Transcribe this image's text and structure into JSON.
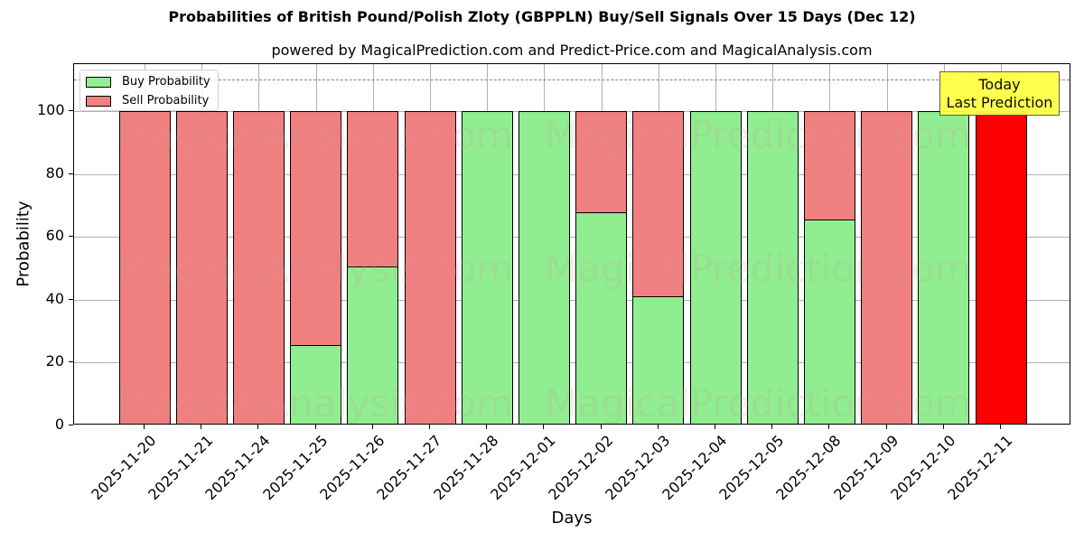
{
  "title": "Probabilities of British Pound/Polish Zloty (GBPPLN) Buy/Sell Signals Over 15 Days (Dec 12)",
  "subtitle": "powered by MagicalPrediction.com and Predict-Price.com and MagicalAnalysis.com",
  "watermarks": [
    "MagicalAnalysis.com",
    "MagicalPrediction.com"
  ],
  "legend": {
    "buy_label": "Buy Probability",
    "sell_label": "Sell Probability"
  },
  "annotation": {
    "line1": "Today",
    "line2": "Last Prediction"
  },
  "colors": {
    "buy": "#90ee90",
    "sell": "#f08080",
    "today": "#ff0000",
    "annotation_bg": "#ffff44"
  },
  "chart_data": {
    "type": "bar",
    "stacked": true,
    "title": "Probabilities of British Pound/Polish Zloty (GBPPLN) Buy/Sell Signals Over 15 Days (Dec 12)",
    "subtitle": "powered by MagicalPrediction.com and Predict-Price.com and MagicalAnalysis.com",
    "xlabel": "Days",
    "ylabel": "Probability",
    "ylim": [
      0,
      115
    ],
    "yticks": [
      0,
      20,
      40,
      60,
      80,
      100
    ],
    "grid": true,
    "legend_position": "upper left",
    "reference_line": {
      "y": 110,
      "style": "dashed"
    },
    "categories": [
      "2025-11-20",
      "2025-11-21",
      "2025-11-24",
      "2025-11-25",
      "2025-11-26",
      "2025-11-27",
      "2025-11-28",
      "2025-12-01",
      "2025-12-02",
      "2025-12-03",
      "2025-12-04",
      "2025-12-05",
      "2025-12-08",
      "2025-12-09",
      "2025-12-10",
      "2025-12-11"
    ],
    "series": [
      {
        "name": "Buy Probability",
        "values": [
          0,
          0,
          0,
          25.7,
          50.6,
          0,
          100,
          100,
          67.9,
          41.2,
          100,
          100,
          65.5,
          0,
          100,
          0
        ]
      },
      {
        "name": "Sell Probability",
        "values": [
          100,
          100,
          100,
          74.3,
          49.4,
          100,
          0,
          0,
          32.1,
          58.8,
          0,
          0,
          34.5,
          100,
          0,
          100
        ]
      }
    ],
    "highlight": {
      "category": "2025-12-11",
      "color": "#ff0000",
      "label": "Today\nLast Prediction"
    }
  }
}
